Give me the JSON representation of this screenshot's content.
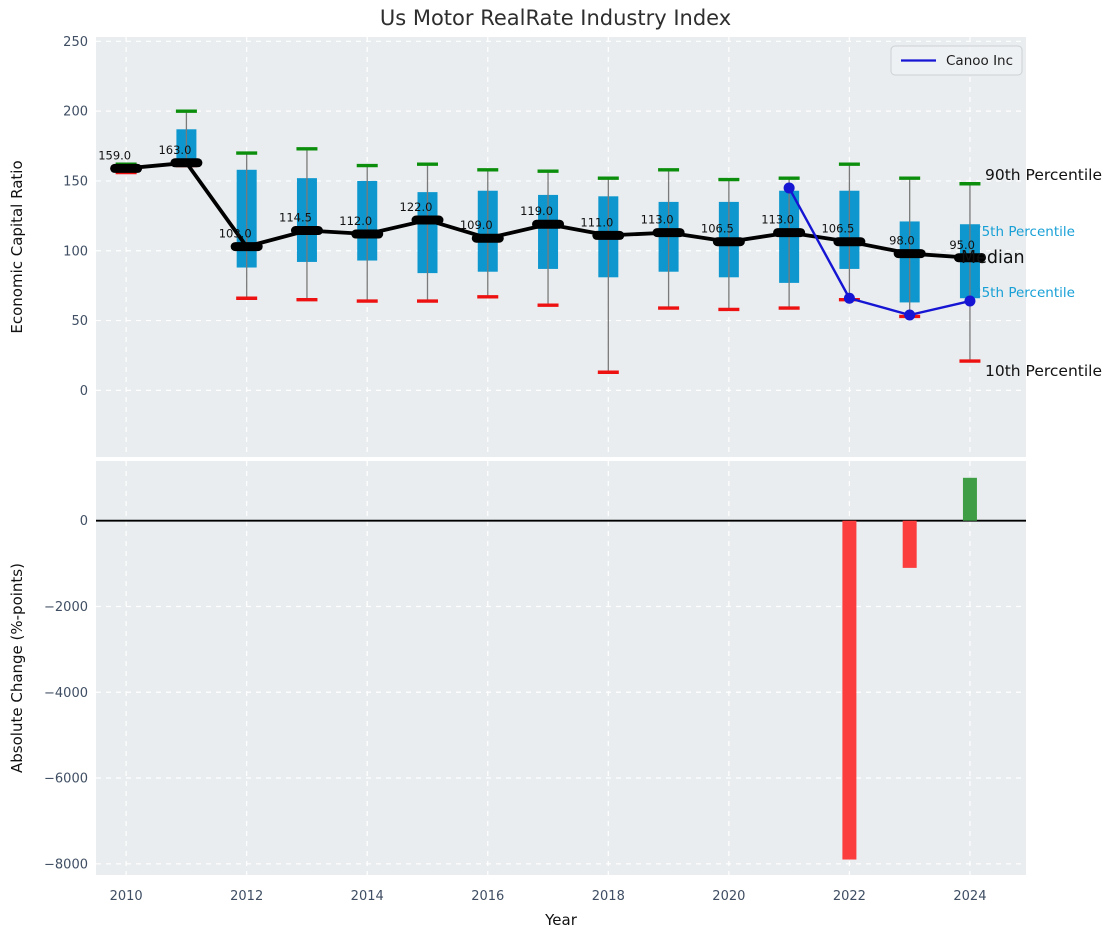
{
  "title": "Us Motor RealRate Industry Index",
  "legend": {
    "label": "Canoo Inc"
  },
  "colors": {
    "axes_bg": "#e9edef",
    "grid": "#ffffff",
    "tick_label": "#3f4e63",
    "axis_label": "#111111",
    "box_fill": "#0d97ce",
    "whisker": "#7a7a7a",
    "p90_cap": "#0b8e0b",
    "p10_cap": "#ee1111",
    "median": "#000000",
    "canoo_line": "#1515d3",
    "bar_negative": "#fb3d3d",
    "bar_positive": "#3f9e45",
    "annotation_black": "#111111",
    "annotation_cyan": "#18a0d6",
    "legend_bg": "#eef1f4",
    "legend_border": "#cdd0d4"
  },
  "chart_data": [
    {
      "type": "boxplot+line",
      "title": "Us Motor RealRate Industry Index",
      "ylabel": "Economic Capital Ratio",
      "xlabel": "Year",
      "ylim": [
        -47.7,
        253.1
      ],
      "xlim": [
        2009.5,
        2024.93
      ],
      "yticks": [
        0,
        50,
        100,
        150,
        200,
        250
      ],
      "xticks": [
        2010,
        2012,
        2014,
        2016,
        2018,
        2020,
        2022,
        2024
      ],
      "grid": true,
      "legend_position": "upper right",
      "boxes": [
        {
          "year": 2010,
          "p10": 156,
          "q1": 157,
          "median": 159.0,
          "q3": 161,
          "p90": 162,
          "label": "159.0"
        },
        {
          "year": 2011,
          "p10": 161,
          "q1": 162,
          "median": 163.0,
          "q3": 187,
          "p90": 200,
          "label": "163.0"
        },
        {
          "year": 2012,
          "p10": 66,
          "q1": 88,
          "median": 103.0,
          "q3": 158,
          "p90": 170,
          "label": "103.0"
        },
        {
          "year": 2013,
          "p10": 65,
          "q1": 92,
          "median": 114.5,
          "q3": 152,
          "p90": 173,
          "label": "114.5"
        },
        {
          "year": 2014,
          "p10": 64,
          "q1": 93,
          "median": 112.0,
          "q3": 150,
          "p90": 161,
          "label": "112.0"
        },
        {
          "year": 2015,
          "p10": 64,
          "q1": 84,
          "median": 122.0,
          "q3": 142,
          "p90": 162,
          "label": "122.0"
        },
        {
          "year": 2016,
          "p10": 67,
          "q1": 85,
          "median": 109.0,
          "q3": 143,
          "p90": 158,
          "label": "109.0"
        },
        {
          "year": 2017,
          "p10": 61,
          "q1": 87,
          "median": 119.0,
          "q3": 140,
          "p90": 157,
          "label": "119.0"
        },
        {
          "year": 2018,
          "p10": 13,
          "q1": 81,
          "median": 111.0,
          "q3": 139,
          "p90": 152,
          "label": "111.0"
        },
        {
          "year": 2019,
          "p10": 59,
          "q1": 85,
          "median": 113.0,
          "q3": 135,
          "p90": 158,
          "label": "113.0"
        },
        {
          "year": 2020,
          "p10": 58,
          "q1": 81,
          "median": 106.5,
          "q3": 135,
          "p90": 151,
          "label": "106.5"
        },
        {
          "year": 2021,
          "p10": 59,
          "q1": 77,
          "median": 113.0,
          "q3": 143,
          "p90": 152,
          "label": "113.0"
        },
        {
          "year": 2022,
          "p10": 65,
          "q1": 87,
          "median": 106.5,
          "q3": 143,
          "p90": 162,
          "label": "106.5"
        },
        {
          "year": 2023,
          "p10": 53,
          "q1": 63,
          "median": 98.0,
          "q3": 121,
          "p90": 152,
          "label": "98.0"
        },
        {
          "year": 2024,
          "p10": 21,
          "q1": 66,
          "median": 95.0,
          "q3": 119,
          "p90": 148,
          "label": "95.0"
        }
      ],
      "series": [
        {
          "name": "Canoo Inc",
          "points": [
            {
              "year": 2021,
              "value": 145
            },
            {
              "year": 2022,
              "value": 66
            },
            {
              "year": 2023,
              "value": 54
            },
            {
              "year": 2024,
              "value": 64
            }
          ]
        }
      ],
      "annotations": [
        {
          "label": "90th Percentile",
          "style": "black"
        },
        {
          "label": "75th Percentile",
          "style": "cyan"
        },
        {
          "label": "Median",
          "style": "black-large"
        },
        {
          "label": "25th Percentile",
          "style": "cyan"
        },
        {
          "label": "10th Percentile",
          "style": "black"
        }
      ]
    },
    {
      "type": "bar",
      "ylabel": "Absolute Change (%-points)",
      "xlabel": "Year",
      "ylim": [
        -8261,
        1392
      ],
      "yticks": [
        0,
        -2000,
        -4000,
        -6000,
        -8000
      ],
      "xticks": [
        2010,
        2012,
        2014,
        2016,
        2018,
        2020,
        2022,
        2024
      ],
      "grid": true,
      "bars": [
        {
          "year": 2022,
          "value": -7900
        },
        {
          "year": 2023,
          "value": -1100
        },
        {
          "year": 2024,
          "value": 1000
        }
      ]
    }
  ]
}
